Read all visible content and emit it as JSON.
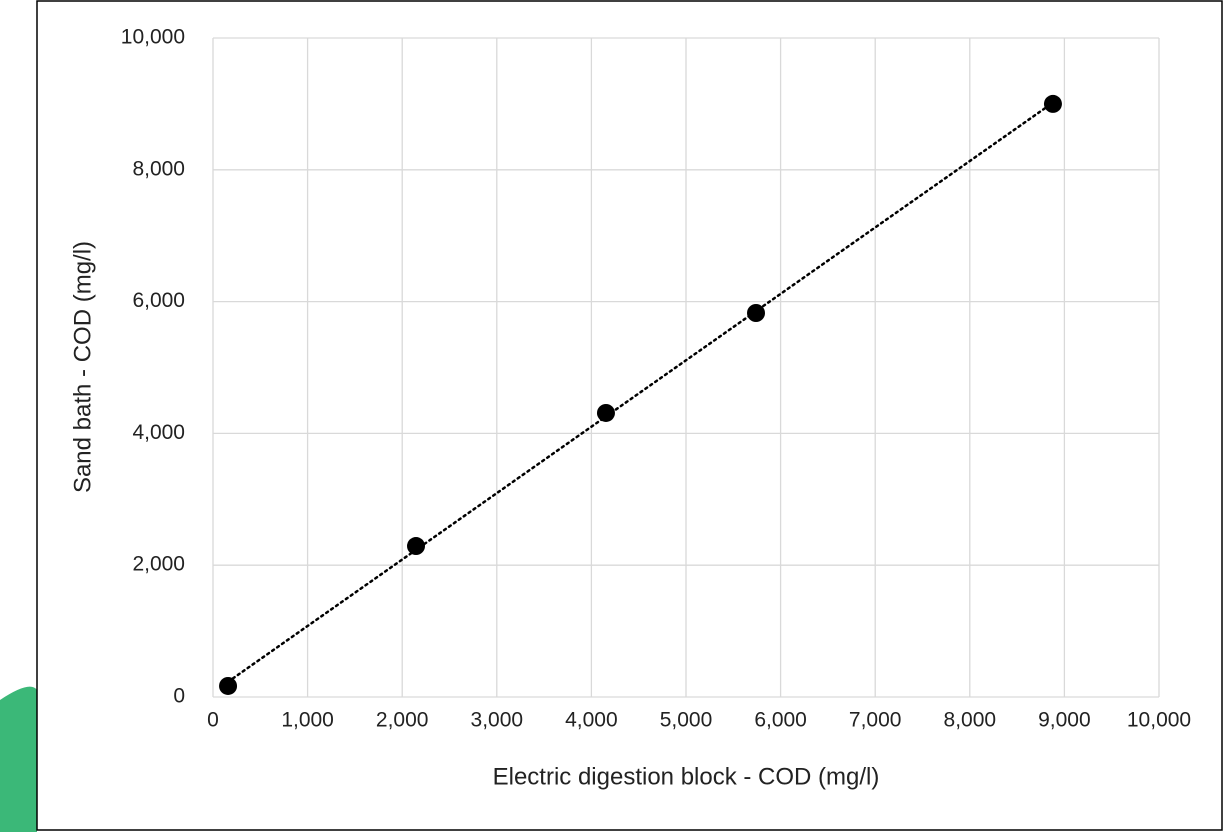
{
  "chart_data": {
    "type": "scatter",
    "x_label": "Electric digestion block - COD (mg/l)",
    "y_label": "Sand bath - COD (mg/l)",
    "series": [
      {
        "color": "#000000",
        "x": [
          159,
          2146,
          4154,
          5740,
          8879
        ],
        "values": [
          167,
          2291,
          4310,
          5827,
          9000
        ]
      }
    ],
    "trendline": "linear",
    "xlim": [
      0,
      10000
    ],
    "xticks": [
      0,
      {
        "value": 1000,
        "label": "1,000"
      },
      {
        "value": 2000,
        "label": "2,000"
      },
      {
        "value": 3000,
        "label": "3,000"
      },
      {
        "value": 4000,
        "label": "4,000"
      },
      {
        "value": 5000,
        "label": "5,000"
      },
      {
        "value": 6000,
        "label": "6,000"
      },
      {
        "value": 7000,
        "label": "7,000"
      },
      {
        "value": 8000,
        "label": "8,000"
      },
      {
        "value": 9000,
        "label": "9,000"
      },
      {
        "value": 10000,
        "label": "10,000"
      }
    ],
    "ylim": [
      0,
      10000
    ],
    "yticks": [
      0,
      {
        "value": 2000,
        "label": "2,000"
      },
      {
        "value": 4000,
        "label": "4,000"
      },
      {
        "value": 6000,
        "label": "6,000"
      },
      {
        "value": 8000,
        "label": "8,000"
      },
      {
        "value": 10000,
        "label": "10,000"
      }
    ],
    "grid": true
  }
}
